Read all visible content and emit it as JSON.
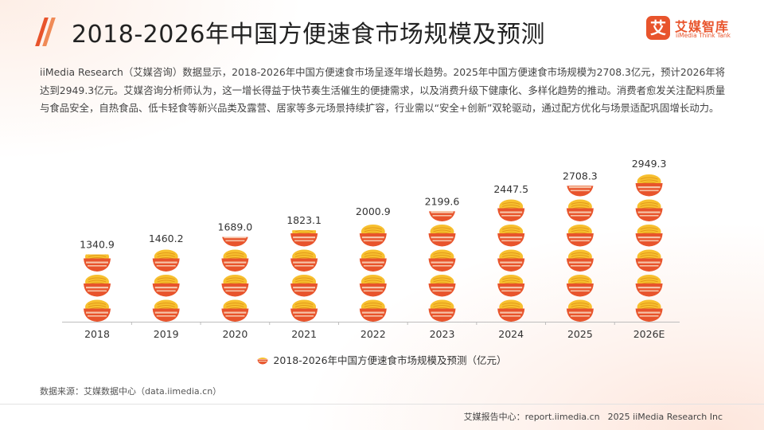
{
  "header": {
    "title": "2018-2026年中国方便速食市场规模及预测"
  },
  "logo": {
    "mark": "艾",
    "name": "艾媒智库",
    "sub": "iiMedia Think Tank"
  },
  "description": "iiMedia Research（艾媒咨询）数据显示，2018-2026年中国方便速食市场呈逐年增长趋势。2025年中国方便速食市场规模为2708.3亿元，预计2026年将达到2949.3亿元。艾媒咨询分析师认为，这一增长得益于快节奏生活催生的便捷需求，以及消费升级下健康化、多样化趋势的推动。消费者愈发关注配料质量与食品安全，自热食品、低卡轻食等新兴品类及露营、居家等多元场景持续扩容，行业需以“安全+创新”双轮驱动，通过配方优化与场景适配巩固增长动力。",
  "chart_data": {
    "type": "bar",
    "title": "2018-2026年中国方便速食市场规模及预测（亿元）",
    "categories": [
      "2018",
      "2019",
      "2020",
      "2021",
      "2022",
      "2023",
      "2024",
      "2025",
      "2026E"
    ],
    "values": [
      1340.9,
      1460.2,
      1689.0,
      1823.1,
      2000.9,
      2199.6,
      2447.5,
      2708.3,
      2949.3
    ],
    "value_labels": [
      "1340.9",
      "1460.2",
      "1689.0",
      "1823.1",
      "2000.9",
      "2199.6",
      "2447.5",
      "2708.3",
      "2949.3"
    ],
    "unit": "亿元",
    "xlabel": "",
    "ylabel": "",
    "ylim": [
      0,
      3000
    ],
    "grid": false,
    "legend": "bottom-center",
    "legend_label": "2018-2026年中国方便速食市场规模及预测（亿元）",
    "colors": {
      "bowl": "#e8542c",
      "bowl_stripe": "#f6c4a8",
      "noodle": "#f7c02f",
      "noodle_line": "#e39a1b",
      "axis": "#bdbdbd"
    }
  },
  "source": "数据来源：艾媒数据中心（data.iimedia.cn）",
  "footer": {
    "report": "艾媒报告中心：report.iimedia.cn",
    "copyright": "2025 iiMedia Research Inc"
  }
}
